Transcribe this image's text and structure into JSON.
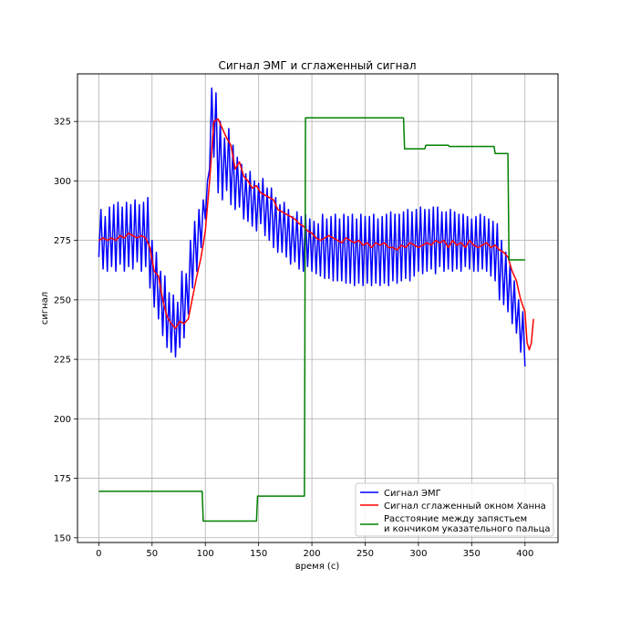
{
  "chart_data": {
    "type": "line",
    "title": "Сигнал ЭМГ и сглаженный сигнал",
    "xlabel": "время (с)",
    "ylabel": "сигнал",
    "xlim": [
      -20,
      431
    ],
    "ylim": [
      148,
      345
    ],
    "xticks": [
      0,
      50,
      100,
      150,
      200,
      250,
      300,
      350,
      400
    ],
    "yticks": [
      150,
      175,
      200,
      225,
      250,
      275,
      300,
      325
    ],
    "grid": true,
    "legend_position": "lower-right",
    "series": [
      {
        "name": "Сигнал ЭМГ",
        "color": "#0000ff",
        "x": [
          0,
          2,
          4,
          6,
          8,
          10,
          12,
          14,
          16,
          18,
          20,
          22,
          24,
          26,
          28,
          30,
          32,
          34,
          36,
          38,
          40,
          42,
          44,
          46,
          48,
          50,
          52,
          54,
          56,
          58,
          60,
          62,
          64,
          66,
          68,
          70,
          72,
          74,
          76,
          78,
          80,
          82,
          84,
          86,
          88,
          90,
          92,
          94,
          96,
          98,
          100,
          102,
          104,
          106,
          108,
          110,
          112,
          114,
          116,
          118,
          120,
          122,
          124,
          126,
          128,
          130,
          132,
          134,
          136,
          138,
          140,
          142,
          144,
          146,
          148,
          150,
          152,
          154,
          156,
          158,
          160,
          162,
          164,
          166,
          168,
          170,
          172,
          174,
          176,
          178,
          180,
          182,
          184,
          186,
          188,
          190,
          192,
          194,
          196,
          198,
          200,
          202,
          204,
          206,
          208,
          210,
          212,
          214,
          216,
          218,
          220,
          222,
          224,
          226,
          228,
          230,
          232,
          234,
          236,
          238,
          240,
          242,
          244,
          246,
          248,
          250,
          252,
          254,
          256,
          258,
          260,
          262,
          264,
          266,
          268,
          270,
          272,
          274,
          276,
          278,
          280,
          282,
          284,
          286,
          288,
          290,
          292,
          294,
          296,
          298,
          300,
          302,
          304,
          306,
          308,
          310,
          312,
          314,
          316,
          318,
          320,
          322,
          324,
          326,
          328,
          330,
          332,
          334,
          336,
          338,
          340,
          342,
          344,
          346,
          348,
          350,
          352,
          354,
          356,
          358,
          360,
          362,
          364,
          366,
          368,
          370,
          372,
          374,
          376,
          378,
          380,
          382,
          384,
          386,
          388,
          390,
          392,
          394,
          396,
          398,
          400
        ],
        "values": [
          268,
          288,
          263,
          285,
          262,
          289,
          264,
          290,
          262,
          291,
          265,
          289,
          262,
          291,
          264,
          290,
          263,
          292,
          266,
          290,
          262,
          291,
          264,
          293,
          255,
          275,
          247,
          270,
          242,
          262,
          235,
          260,
          230,
          253,
          228,
          252,
          226,
          249,
          230,
          262,
          234,
          261,
          244,
          275,
          255,
          283,
          262,
          288,
          272,
          292,
          284,
          300,
          305,
          339,
          310,
          337,
          295,
          325,
          292,
          318,
          296,
          322,
          290,
          315,
          288,
          310,
          289,
          307,
          284,
          303,
          283,
          304,
          281,
          300,
          279,
          299,
          282,
          301,
          277,
          297,
          275,
          297,
          272,
          293,
          270,
          290,
          270,
          291,
          268,
          288,
          265,
          285,
          266,
          287,
          263,
          285,
          262,
          286,
          264,
          284,
          262,
          283,
          261,
          282,
          260,
          286,
          259,
          284,
          259,
          285,
          258,
          286,
          258,
          284,
          258,
          286,
          257,
          285,
          257,
          286,
          256,
          284,
          257,
          286,
          256,
          285,
          257,
          285,
          256,
          286,
          257,
          284,
          256,
          285,
          257,
          286,
          256,
          287,
          258,
          286,
          257,
          286,
          258,
          287,
          259,
          288,
          258,
          287,
          260,
          288,
          262,
          289,
          261,
          288,
          262,
          288,
          263,
          289,
          261,
          289,
          264,
          287,
          262,
          287,
          263,
          288,
          262,
          287,
          263,
          286,
          262,
          286,
          264,
          285,
          263,
          284,
          262,
          285,
          262,
          286,
          263,
          285,
          262,
          284,
          260,
          283,
          258,
          282,
          250,
          275,
          248,
          270,
          245,
          265,
          240,
          258,
          236,
          250,
          228,
          245,
          222
        ]
      },
      {
        "name": "Сигнал сглаженный окном Ханна",
        "color": "#ff0000",
        "x": [
          0,
          4,
          8,
          12,
          16,
          20,
          24,
          28,
          32,
          36,
          40,
          44,
          48,
          52,
          56,
          60,
          64,
          68,
          72,
          76,
          80,
          84,
          88,
          92,
          96,
          100,
          104,
          108,
          112,
          116,
          120,
          124,
          128,
          132,
          136,
          140,
          144,
          148,
          152,
          156,
          160,
          164,
          168,
          172,
          176,
          180,
          184,
          188,
          192,
          196,
          200,
          204,
          208,
          212,
          216,
          220,
          224,
          228,
          232,
          236,
          240,
          244,
          248,
          252,
          256,
          260,
          264,
          268,
          272,
          276,
          280,
          284,
          288,
          292,
          296,
          300,
          304,
          308,
          312,
          316,
          320,
          324,
          328,
          332,
          336,
          340,
          344,
          348,
          352,
          356,
          360,
          364,
          368,
          372,
          376,
          380,
          384,
          388,
          392,
          396,
          400,
          402,
          404,
          406,
          408
        ],
        "values": [
          275,
          276,
          275,
          276,
          275,
          277,
          276,
          278,
          277,
          276,
          277,
          276,
          272,
          262,
          260,
          250,
          243,
          240,
          238,
          241,
          240,
          242,
          251,
          260,
          268,
          279,
          300,
          325,
          326,
          322,
          318,
          315,
          305,
          308,
          302,
          300,
          297,
          298,
          295,
          294,
          293,
          292,
          288,
          287,
          286,
          285,
          284,
          282,
          281,
          279,
          278,
          276,
          275,
          276,
          277,
          276,
          275,
          274,
          276,
          275,
          274,
          275,
          273,
          274,
          272,
          274,
          273,
          274,
          272,
          272,
          271,
          273,
          272,
          274,
          273,
          272,
          273,
          274,
          273,
          275,
          274,
          275,
          272,
          275,
          273,
          274,
          272,
          275,
          273,
          272,
          273,
          274,
          272,
          273,
          271,
          270,
          268,
          262,
          258,
          250,
          245,
          232,
          229,
          232,
          242
        ]
      },
      {
        "name": "Расстояние между запястьем\nи кончиком указательного пальца",
        "color": "#008000",
        "x": [
          0,
          97,
          98,
          148,
          149,
          193,
          194,
          286,
          287,
          306,
          307,
          328,
          329,
          371,
          372,
          384,
          385,
          400
        ],
        "values": [
          169.5,
          169.5,
          157,
          157,
          167.5,
          167.5,
          326.5,
          326.5,
          313.5,
          313.5,
          315,
          315,
          314.5,
          314.5,
          311.5,
          311.5,
          266.8,
          266.8
        ]
      }
    ]
  }
}
